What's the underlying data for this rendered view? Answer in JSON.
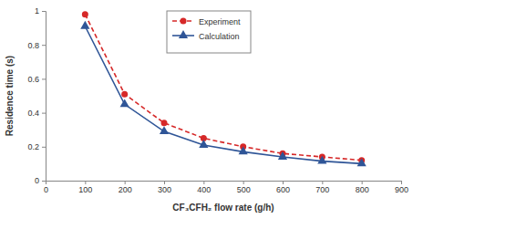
{
  "chart_data": {
    "type": "line",
    "x_label": "CF₃CFH₂ flow rate (g/h)",
    "y_label": "Residence time (s)",
    "x": [
      100,
      200,
      300,
      400,
      500,
      600,
      700,
      800
    ],
    "series": [
      {
        "name": "Experiment",
        "color": "#d62828",
        "marker": "circle",
        "line_style": "dashed",
        "values": [
          0.98,
          0.51,
          0.34,
          0.25,
          0.2,
          0.16,
          0.14,
          0.12
        ]
      },
      {
        "name": "Calculation",
        "color": "#2f5597",
        "marker": "triangle",
        "line_style": "solid",
        "values": [
          0.91,
          0.45,
          0.29,
          0.21,
          0.17,
          0.14,
          0.115,
          0.1
        ]
      }
    ],
    "xlim": [
      0,
      900
    ],
    "xticks": [
      0,
      100,
      200,
      300,
      400,
      500,
      600,
      700,
      800,
      900
    ],
    "ylim": [
      0,
      1
    ],
    "yticks": [
      0,
      0.2,
      0.4,
      0.6,
      0.8,
      1
    ],
    "grid": false,
    "legend": "top"
  }
}
